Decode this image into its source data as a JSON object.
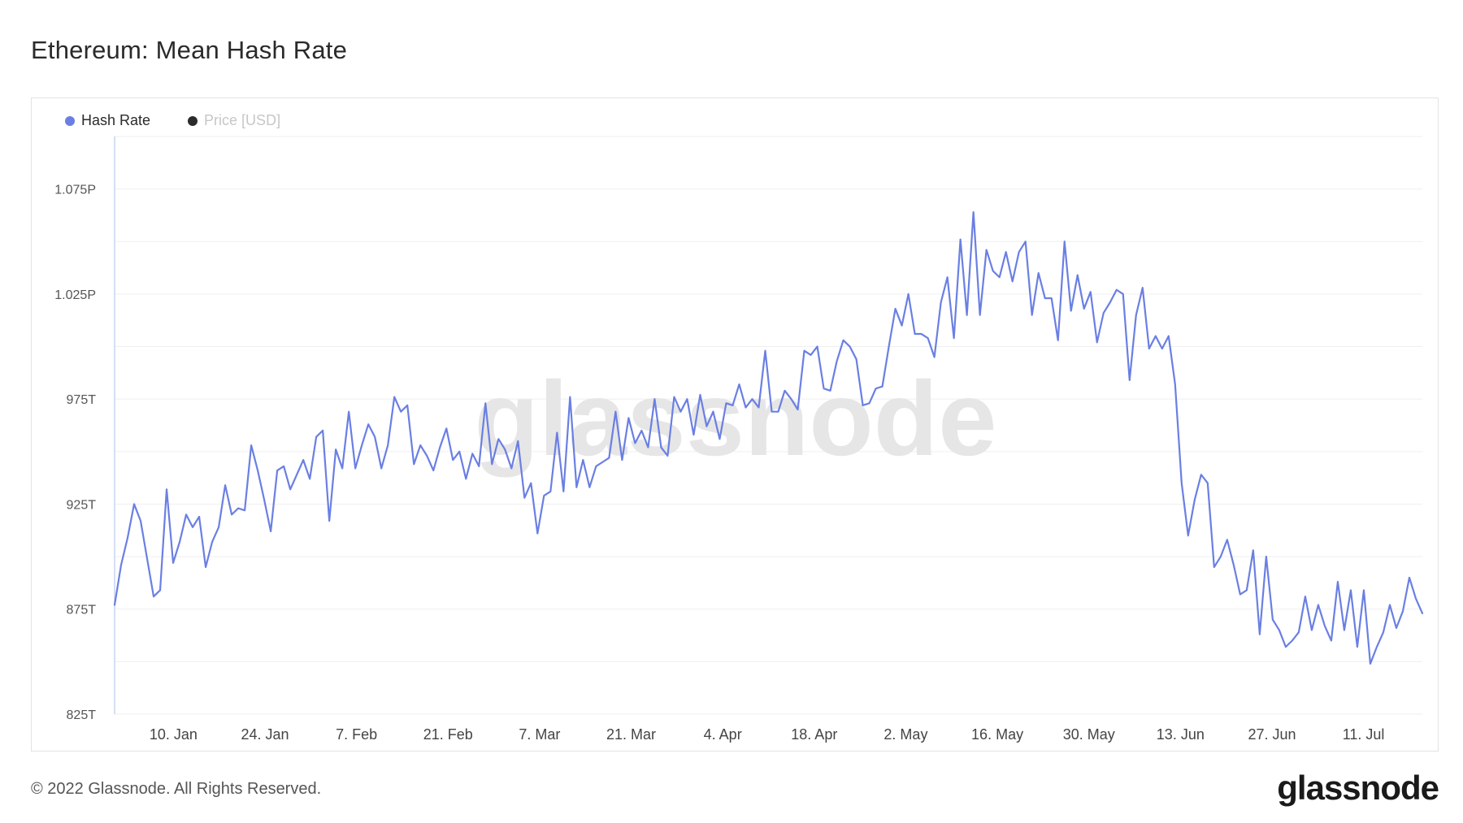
{
  "page": {
    "title": "Ethereum: Mean Hash Rate",
    "copyright": "© 2022 Glassnode. All Rights Reserved.",
    "brand": "glassnode",
    "watermark": "glassnode"
  },
  "colors": {
    "hash_rate": "#6a7fe3",
    "price": "#2b2b2b",
    "grid": "#efefef",
    "axis": "#c9d3f2"
  },
  "legend": [
    {
      "name": "Hash Rate",
      "color": "#6a7fe3",
      "active": true
    },
    {
      "name": "Price [USD]",
      "color": "#2b2b2b",
      "active": false
    }
  ],
  "chart_data": {
    "type": "line",
    "title": "Ethereum: Mean Hash Rate",
    "x_start": "2022-01-01",
    "x_end": "2022-07-20",
    "x_ticks": [
      {
        "date": "2022-01-10",
        "label": "10. Jan"
      },
      {
        "date": "2022-01-24",
        "label": "24. Jan"
      },
      {
        "date": "2022-02-07",
        "label": "7. Feb"
      },
      {
        "date": "2022-02-21",
        "label": "21. Feb"
      },
      {
        "date": "2022-03-07",
        "label": "7. Mar"
      },
      {
        "date": "2022-03-21",
        "label": "21. Mar"
      },
      {
        "date": "2022-04-04",
        "label": "4. Apr"
      },
      {
        "date": "2022-04-18",
        "label": "18. Apr"
      },
      {
        "date": "2022-05-02",
        "label": "2. May"
      },
      {
        "date": "2022-05-16",
        "label": "16. May"
      },
      {
        "date": "2022-05-30",
        "label": "30. May"
      },
      {
        "date": "2022-06-13",
        "label": "13. Jun"
      },
      {
        "date": "2022-06-27",
        "label": "27. Jun"
      },
      {
        "date": "2022-07-11",
        "label": "11. Jul"
      }
    ],
    "y_unit": "TH/s",
    "ylim": [
      825,
      1100
    ],
    "y_ticks": [
      {
        "value": 825,
        "label": "825T"
      },
      {
        "value": 875,
        "label": "875T"
      },
      {
        "value": 925,
        "label": "925T"
      },
      {
        "value": 975,
        "label": "975T"
      },
      {
        "value": 1025,
        "label": "1.025P"
      },
      {
        "value": 1075,
        "label": "1.075P"
      }
    ],
    "y_gridlines": [
      850,
      900,
      950,
      1000,
      1050,
      1100
    ],
    "legend_position": "top-left",
    "series": [
      {
        "name": "Hash Rate",
        "color": "#6a7fe3",
        "values": [
          877,
          896,
          909,
          925,
          917,
          899,
          881,
          884,
          932,
          897,
          907,
          920,
          914,
          919,
          895,
          907,
          914,
          934,
          920,
          923,
          922,
          953,
          941,
          927,
          912,
          941,
          943,
          932,
          939,
          946,
          937,
          957,
          960,
          917,
          951,
          942,
          969,
          942,
          953,
          963,
          957,
          942,
          953,
          976,
          969,
          972,
          944,
          953,
          948,
          941,
          952,
          961,
          946,
          950,
          937,
          949,
          943,
          973,
          944,
          956,
          951,
          942,
          955,
          928,
          935,
          911,
          929,
          931,
          959,
          931,
          976,
          933,
          946,
          933,
          943,
          945,
          947,
          969,
          946,
          966,
          954,
          960,
          952,
          975,
          952,
          948,
          976,
          969,
          975,
          958,
          977,
          962,
          969,
          956,
          973,
          972,
          982,
          971,
          975,
          971,
          998,
          969,
          969,
          979,
          975,
          970,
          998,
          996,
          1000,
          980,
          979,
          993,
          1003,
          1000,
          994,
          972,
          973,
          980,
          981,
          1000,
          1018,
          1010,
          1025,
          1006,
          1006,
          1004,
          995,
          1021,
          1033,
          1004,
          1051,
          1015,
          1064,
          1015,
          1046,
          1036,
          1033,
          1045,
          1031,
          1045,
          1050,
          1015,
          1035,
          1023,
          1023,
          1003,
          1050,
          1017,
          1034,
          1018,
          1026,
          1002,
          1016,
          1021,
          1027,
          1025,
          984,
          1015,
          1028,
          999,
          1005,
          999,
          1005,
          982,
          935,
          910,
          927,
          939,
          935,
          895,
          900,
          908,
          896,
          882,
          884,
          903,
          863,
          900,
          870,
          865,
          857,
          860,
          864,
          881,
          865,
          877,
          867,
          860,
          888,
          865,
          884,
          857,
          884,
          849,
          857,
          864,
          877,
          866,
          874,
          890,
          880,
          873
        ]
      }
    ]
  }
}
